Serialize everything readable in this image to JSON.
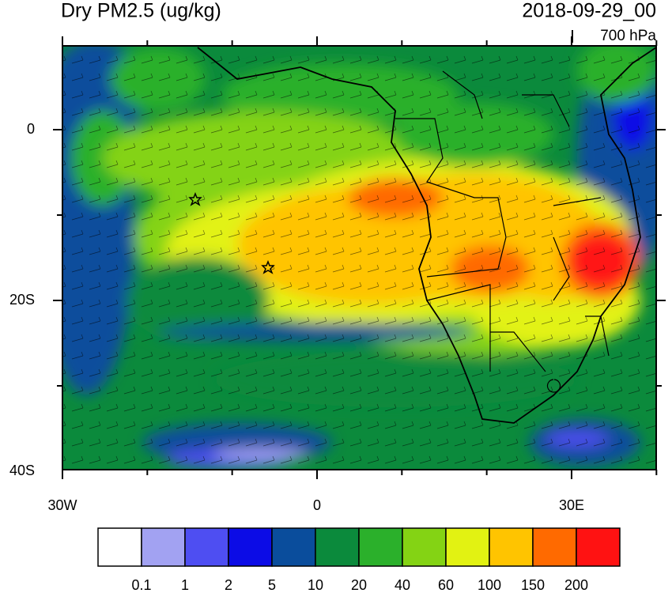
{
  "header": {
    "title": "Dry PM2.5 (ug/kg)",
    "date": "2018-09-29_00",
    "level": "700 hPa"
  },
  "map": {
    "lat_labels": [
      "0",
      "20S",
      "40S"
    ],
    "lon_labels": [
      "30W",
      "0",
      "30E"
    ]
  },
  "colorbar": {
    "colors": [
      "#ffffff",
      "#a2a2f2",
      "#4e4ef2",
      "#0c0ce6",
      "#0a4d9c",
      "#0b8a3c",
      "#2bb02b",
      "#84d314",
      "#e2f212",
      "#ffc400",
      "#ff6a00",
      "#ff1212"
    ],
    "labels": [
      "0.1",
      "1",
      "2",
      "5",
      "10",
      "20",
      "40",
      "60",
      "100",
      "150",
      "200"
    ]
  }
}
